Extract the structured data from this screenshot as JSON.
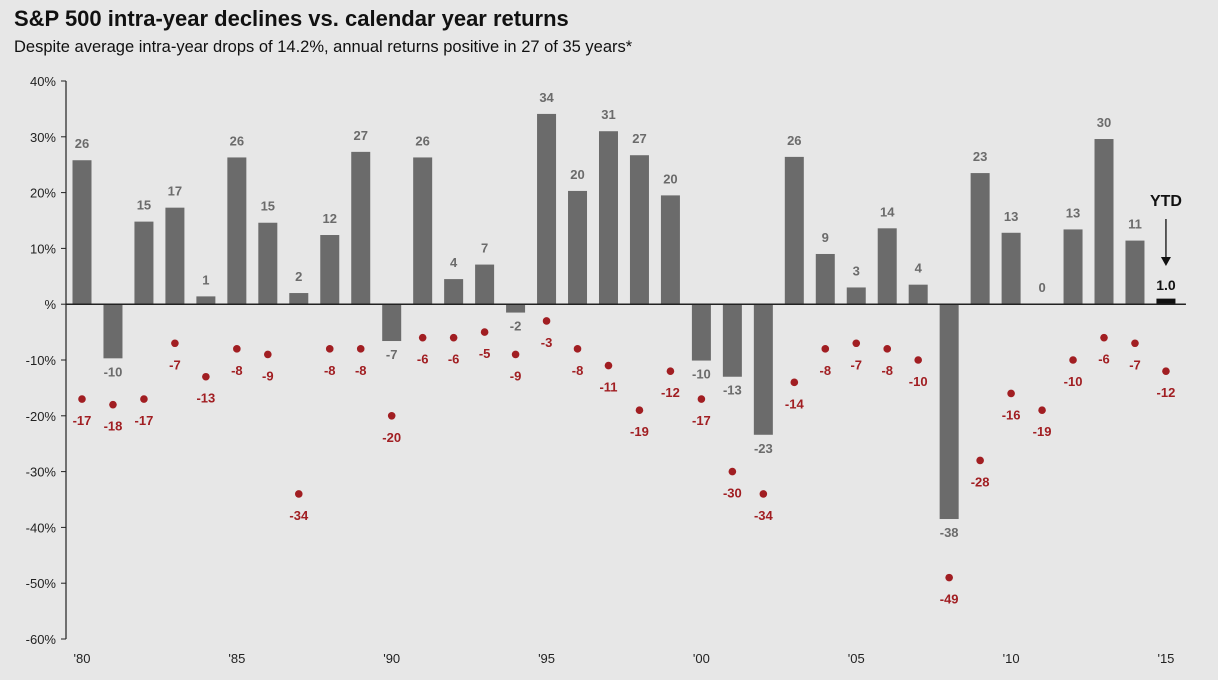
{
  "header": {
    "title": "S&P 500 intra-year declines vs. calendar year returns",
    "subtitle": "Despite average intra-year drops of 14.2%, annual returns positive in 27 of 35 years*"
  },
  "chart_data": {
    "type": "bar",
    "title": "S&P 500 intra-year declines vs. calendar year returns",
    "subtitle": "Despite average intra-year drops of 14.2%, annual returns positive in 27 of 35 years*",
    "years": [
      1980,
      1981,
      1982,
      1983,
      1984,
      1985,
      1986,
      1987,
      1988,
      1989,
      1990,
      1991,
      1992,
      1993,
      1994,
      1995,
      1996,
      1997,
      1998,
      1999,
      2000,
      2001,
      2002,
      2003,
      2004,
      2005,
      2006,
      2007,
      2008,
      2009,
      2010,
      2011,
      2012,
      2013,
      2014,
      2015
    ],
    "x_tick_labels": [
      {
        "year": 1980,
        "label": "'80"
      },
      {
        "year": 1985,
        "label": "'85"
      },
      {
        "year": 1990,
        "label": "'90"
      },
      {
        "year": 1995,
        "label": "'95"
      },
      {
        "year": 2000,
        "label": "'00"
      },
      {
        "year": 2005,
        "label": "'05"
      },
      {
        "year": 2010,
        "label": "'10"
      },
      {
        "year": 2015,
        "label": "'15"
      }
    ],
    "y_ticks": [
      {
        "value": 40,
        "label": "40%"
      },
      {
        "value": 30,
        "label": "30%"
      },
      {
        "value": 20,
        "label": "20%"
      },
      {
        "value": 10,
        "label": "10%"
      },
      {
        "value": 0,
        "label": "%"
      },
      {
        "value": -10,
        "label": "-10%"
      },
      {
        "value": -20,
        "label": "-20%"
      },
      {
        "value": -30,
        "label": "-30%"
      },
      {
        "value": -40,
        "label": "-40%"
      },
      {
        "value": -50,
        "label": "-50%"
      },
      {
        "value": -60,
        "label": "-60%"
      }
    ],
    "ylim": [
      -60,
      40
    ],
    "series": [
      {
        "values": [
          25.8,
          -9.7,
          14.8,
          17.3,
          1.4,
          26.3,
          14.6,
          2.0,
          12.4,
          27.3,
          -6.6,
          26.3,
          4.5,
          7.1,
          -1.5,
          34.1,
          20.3,
          31.0,
          26.7,
          19.5,
          -10.1,
          -13.0,
          -23.4,
          26.4,
          9.0,
          3.0,
          13.6,
          3.5,
          -38.5,
          23.5,
          12.8,
          0.0,
          13.4,
          29.6,
          11.4,
          1.0
        ],
        "labels": [
          "26",
          "-10",
          "15",
          "17",
          "1",
          "26",
          "15",
          "2",
          "12",
          "27",
          "-7",
          "26",
          "4",
          "7",
          "-2",
          "34",
          "20",
          "31",
          "27",
          "20",
          "-10",
          "-13",
          "-23",
          "26",
          "9",
          "3",
          "14",
          "4",
          "-38",
          "23",
          "13",
          "0",
          "13",
          "30",
          "11",
          "1.0"
        ],
        "color": "#6b6b6b",
        "ytd_color": "#111111"
      },
      {
        "values": [
          -17,
          -18,
          -17,
          -7,
          -13,
          -8,
          -9,
          -34,
          -8,
          -8,
          -20,
          -6,
          -6,
          -5,
          -9,
          -3,
          -8,
          -11,
          -19,
          -12,
          -17,
          -30,
          -34,
          -14,
          -8,
          -7,
          -8,
          -10,
          -49,
          -28,
          -16,
          -19,
          -10,
          -6,
          -7,
          -12
        ],
        "labels": [
          "-17",
          "-18",
          "-17",
          "-7",
          "-13",
          "-8",
          "-9",
          "-34",
          "-8",
          "-8",
          "-20",
          "-6",
          "-6",
          "-5",
          "-9",
          "-3",
          "-8",
          "-11",
          "-19",
          "-12",
          "-17",
          "-30",
          "-34",
          "-14",
          "-8",
          "-7",
          "-8",
          "-10",
          "-49",
          "-28",
          "-16",
          "-19",
          "-10",
          "-6",
          "-7",
          "-12"
        ],
        "color": "#a11e22"
      }
    ],
    "annotation": {
      "text": "YTD",
      "year": 2015
    },
    "grid": false
  }
}
